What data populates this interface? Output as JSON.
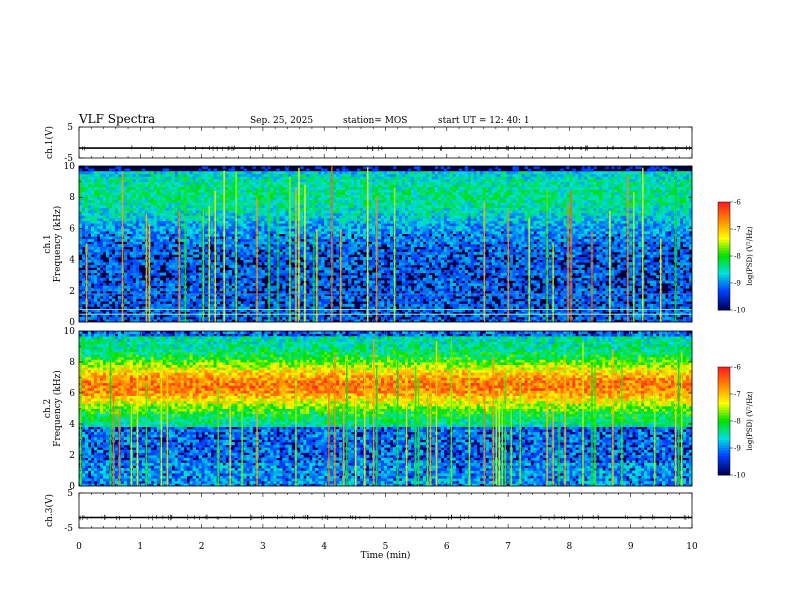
{
  "header": {
    "title": "VLF Spectra",
    "date": "Sep. 25, 2025",
    "station": "station= MOS",
    "start": "start  UT =   12: 40: 1"
  },
  "colorbar": {
    "label": "log(PSD) (V²/Hz)",
    "ticks": [
      "-6",
      "-7",
      "-8",
      "-9",
      "-10"
    ],
    "colors": [
      "#ff2020",
      "#ff8c00",
      "#ffff00",
      "#00e000",
      "#00e0e0",
      "#0040ff",
      "#000060"
    ]
  },
  "chart_data": [
    {
      "type": "line",
      "ylabel": "ch.1(V)",
      "ylim": [
        -5,
        5
      ],
      "yticks": [
        "5",
        "-5"
      ],
      "x": [
        0,
        10
      ],
      "series": [
        {
          "values": [
            -1.8,
            -1.8
          ]
        }
      ]
    },
    {
      "type": "heatmap",
      "ylabel": "ch.1\nFrequency (kHz)",
      "ylim": [
        0,
        10
      ],
      "yticks": [
        "10",
        "8",
        "6",
        "4",
        "2",
        "0"
      ],
      "colorrange": [
        -10,
        -6
      ],
      "hlines_khz": [
        0.5,
        0.8,
        1.8
      ],
      "notes": "dark background with frequent broadband vertical spikes"
    },
    {
      "type": "heatmap",
      "ylabel": "ch.2\nFrequency (kHz)",
      "ylim": [
        0,
        10
      ],
      "yticks": [
        "10",
        "8",
        "6",
        "4",
        "2",
        "0"
      ],
      "colorrange": [
        -10,
        -6
      ],
      "band_khz": [
        4,
        9.5
      ],
      "peak_khz": 6.5,
      "notes": "strong band centred near 6.5 kHz with vertical spikes"
    },
    {
      "type": "line",
      "ylabel": "ch.3(V)",
      "ylim": [
        -5,
        5
      ],
      "yticks": [
        "5",
        "-5"
      ],
      "x": [
        0,
        10
      ],
      "series": [
        {
          "values": [
            -2,
            -2
          ]
        }
      ]
    }
  ],
  "xaxis": {
    "label": "Time (min)",
    "ticks": [
      "0",
      "1",
      "2",
      "3",
      "4",
      "5",
      "6",
      "7",
      "8",
      "9",
      "10"
    ]
  }
}
